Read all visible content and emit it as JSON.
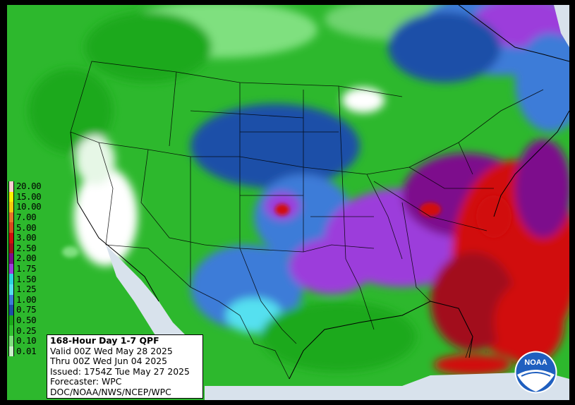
{
  "legend": {
    "items": [
      {
        "label": "20.00",
        "color": "#ffcdd2"
      },
      {
        "label": "15.00",
        "color": "#fff200"
      },
      {
        "label": "10.00",
        "color": "#f9c80e"
      },
      {
        "label": "7.00",
        "color": "#e8732a"
      },
      {
        "label": "5.00",
        "color": "#d94a1e"
      },
      {
        "label": "3.00",
        "color": "#d10e0e"
      },
      {
        "label": "2.50",
        "color": "#a20e1e"
      },
      {
        "label": "2.00",
        "color": "#7d0c8c"
      },
      {
        "label": "1.75",
        "color": "#9c3ddb"
      },
      {
        "label": "1.50",
        "color": "#2ed3e0"
      },
      {
        "label": "1.25",
        "color": "#55e0f0"
      },
      {
        "label": "1.00",
        "color": "#3d7bd8"
      },
      {
        "label": "0.75",
        "color": "#1e4fa8"
      },
      {
        "label": "0.50",
        "color": "#1aa91a"
      },
      {
        "label": "0.25",
        "color": "#30c030"
      },
      {
        "label": "0.10",
        "color": "#7fe07f"
      },
      {
        "label": "0.01",
        "color": "#c9f0c9"
      }
    ]
  },
  "info": {
    "title": "168-Hour Day 1-7 QPF",
    "valid": "Valid 00Z Wed May 28 2025",
    "thru": "Thru 00Z Wed Jun 04 2025",
    "issued": "Issued: 1754Z Tue May 27 2025",
    "forecaster": "Forecaster: WPC",
    "agency": "DOC/NOAA/NWS/NCEP/WPC"
  },
  "logo": {
    "text": "NOAA"
  },
  "colors": {
    "ocean": "#d8e2ec",
    "no_precip_land": "#ffffff",
    "border": "#000000"
  }
}
